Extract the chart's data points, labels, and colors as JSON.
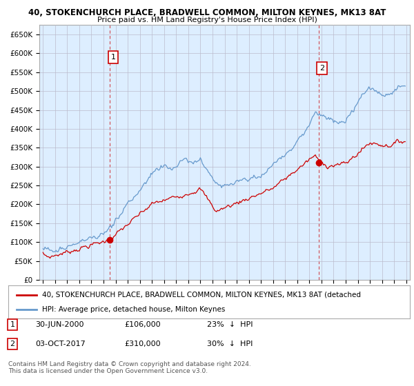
{
  "title": "40, STOKENCHURCH PLACE, BRADWELL COMMON, MILTON KEYNES, MK13 8AT",
  "subtitle": "Price paid vs. HM Land Registry's House Price Index (HPI)",
  "ylim": [
    0,
    675000
  ],
  "yticks": [
    0,
    50000,
    100000,
    150000,
    200000,
    250000,
    300000,
    350000,
    400000,
    450000,
    500000,
    550000,
    600000,
    650000
  ],
  "ytick_labels": [
    "£0",
    "£50K",
    "£100K",
    "£150K",
    "£200K",
    "£250K",
    "£300K",
    "£350K",
    "£400K",
    "£450K",
    "£500K",
    "£550K",
    "£600K",
    "£650K"
  ],
  "xlim_start": 1994.7,
  "xlim_end": 2025.3,
  "marker1_year": 2000.5,
  "marker1_value": 106000,
  "marker1_label": "1",
  "marker2_year": 2017.75,
  "marker2_value": 310000,
  "marker2_label": "2",
  "red_line_color": "#cc0000",
  "blue_line_color": "#6699cc",
  "chart_bg_color": "#ddeeff",
  "marker_color": "#cc0000",
  "dashed_vline_color": "#cc0000",
  "legend_label_red": "40, STOKENCHURCH PLACE, BRADWELL COMMON, MILTON KEYNES, MK13 8AT (detached",
  "legend_label_blue": "HPI: Average price, detached house, Milton Keynes",
  "background_color": "#ffffff",
  "grid_color": "#bbbbcc"
}
